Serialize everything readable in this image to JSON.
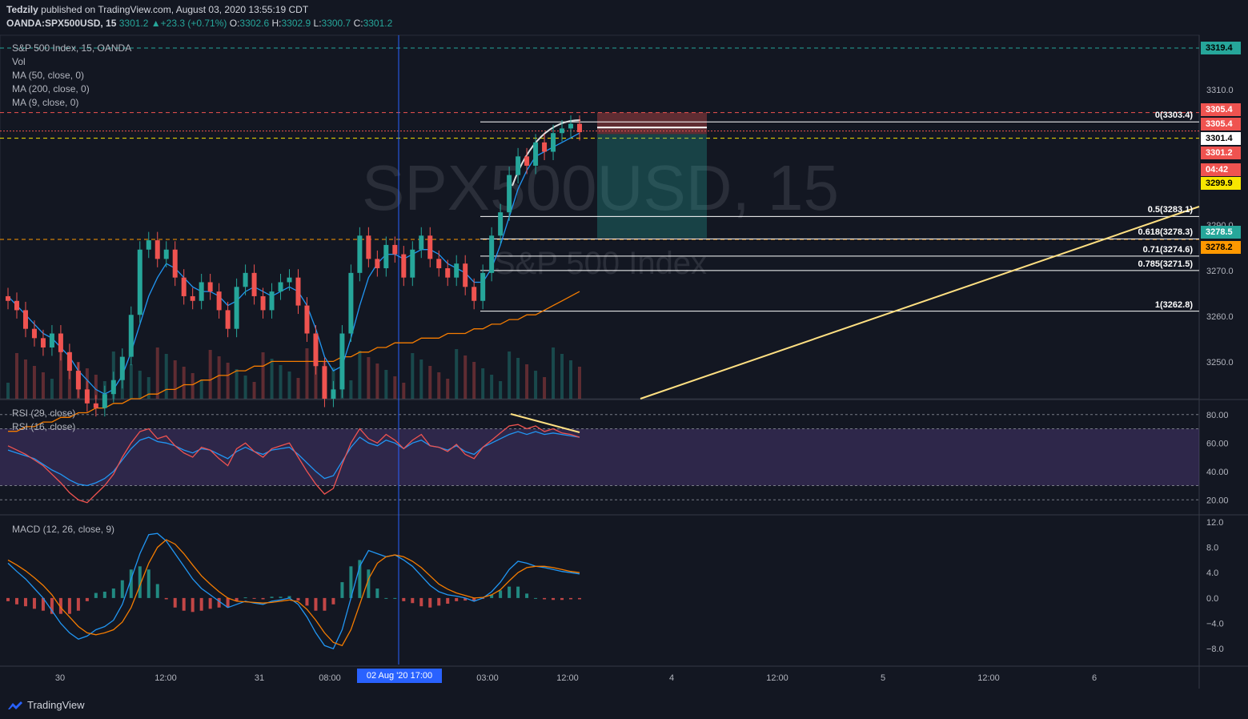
{
  "header": {
    "author": "Tedzily",
    "published": "published on TradingView.com, August 03, 2020 13:55:19 CDT",
    "symbol": "OANDA:SPX500USD, 15",
    "last": "3301.2",
    "change": "+23.3 (+0.71%)",
    "open_label": "O:",
    "open": "3302.6",
    "high_label": "H:",
    "high": "3302.9",
    "low_label": "L:",
    "low": "3300.7",
    "close_label": "C:",
    "close": "3301.2"
  },
  "legend": {
    "title": "S&P 500 Index, 15, OANDA",
    "vol": "Vol",
    "ma50": "MA (50, close, 0)",
    "ma200": "MA (200, close, 0)",
    "ma9": "MA (9, close, 0)",
    "rsi29": "RSI (29, close)",
    "rsi16": "RSI (16, close)",
    "macd": "MACD (12, 26, close, 9)"
  },
  "watermark": {
    "symbol": "SPX500USD, 15",
    "name": "S&P 500 Index"
  },
  "time_axis": {
    "labels": [
      "30",
      "12:00",
      "31",
      "08:00",
      "03:00",
      "12:00",
      "4",
      "12:00",
      "5",
      "12:00",
      "6"
    ],
    "crosshair_label": "02 Aug '20   17:00"
  },
  "price_axis": {
    "ticks": [
      "3310.0",
      "3290.0",
      "3270.0",
      "3260.0",
      "3250.0"
    ],
    "markers": [
      {
        "value": "3319.4",
        "bg": "#26a69a",
        "fg": "#000000"
      },
      {
        "value": "3305.4",
        "bg": "#ef5350",
        "fg": "#ffffff"
      },
      {
        "value": "3305.4",
        "bg": "#ef5350",
        "fg": "#ffffff"
      },
      {
        "value": "3301.4",
        "bg": "#ffffff",
        "fg": "#000000"
      },
      {
        "value": "3301.2",
        "bg": "#ef5350",
        "fg": "#ffffff"
      },
      {
        "value": "04:42",
        "bg": "#ef5350",
        "fg": "#ffffff"
      },
      {
        "value": "3299.9",
        "bg": "#f7e600",
        "fg": "#000000"
      },
      {
        "value": "3278.5",
        "bg": "#26a69a",
        "fg": "#ffffff"
      },
      {
        "value": "3278.2",
        "bg": "#ff9800",
        "fg": "#000000"
      }
    ]
  },
  "fib_levels": [
    {
      "label": "0(3303.4)",
      "price": 3303.4
    },
    {
      "label": "0.5(3283.1)",
      "price": 3283.1
    },
    {
      "label": "0.618(3278.3)",
      "price": 3278.3
    },
    {
      "label": "0.71(3274.6)",
      "price": 3274.6
    },
    {
      "label": "0.785(3271.5)",
      "price": 3271.5
    },
    {
      "label": "1(3262.8)",
      "price": 3262.8
    }
  ],
  "rsi_axis": {
    "ticks": [
      "80.00",
      "60.00",
      "40.00",
      "20.00"
    ]
  },
  "macd_axis": {
    "ticks": [
      "12.0",
      "8.0",
      "4.0",
      "0.0",
      "−4.0",
      "−8.0"
    ]
  },
  "colors": {
    "background": "#131722",
    "up": "#26a69a",
    "down": "#ef5350",
    "ma_blue": "#2196f3",
    "ma_orange": "#f57c00",
    "rsi_band": "#7e57c2",
    "trendline": "#ffe082"
  },
  "chart_data": {
    "type": "candlestick",
    "price_ylim": [
      3244,
      3322
    ],
    "candles_close": [
      3265,
      3263,
      3259,
      3257,
      3255,
      3258,
      3254,
      3250,
      3246,
      3243,
      3242,
      3245,
      3248,
      3253,
      3262,
      3276,
      3278,
      3274,
      3276,
      3270,
      3266,
      3265,
      3269,
      3267,
      3263,
      3259,
      3268,
      3271,
      3266,
      3263,
      3267,
      3269,
      3270,
      3264,
      3258,
      3251,
      3244,
      3246,
      3258,
      3271,
      3279,
      3274,
      3272,
      3277,
      3275,
      3270,
      3276,
      3279,
      3274,
      3272,
      3270,
      3273,
      3268,
      3265,
      3271,
      3279,
      3284,
      3292,
      3296,
      3294,
      3299,
      3297,
      3301,
      3302,
      3303,
      3301.2
    ],
    "ma9": [
      3266,
      3264,
      3262,
      3260,
      3258,
      3257,
      3255,
      3253,
      3250,
      3248,
      3246,
      3245,
      3246,
      3249,
      3254,
      3260,
      3266,
      3270,
      3273,
      3272,
      3270,
      3268,
      3267,
      3267,
      3266,
      3264,
      3265,
      3267,
      3268,
      3267,
      3266,
      3267,
      3268,
      3267,
      3264,
      3259,
      3253,
      3250,
      3251,
      3257,
      3264,
      3270,
      3273,
      3275,
      3275,
      3274,
      3275,
      3276,
      3276,
      3275,
      3273,
      3272,
      3271,
      3269,
      3269,
      3272,
      3277,
      3283,
      3289,
      3293,
      3296,
      3297,
      3298,
      3299,
      3300,
      3301
    ],
    "ma200": [
      3237,
      3237,
      3238,
      3238,
      3239,
      3239,
      3240,
      3240,
      3241,
      3241,
      3242,
      3242,
      3243,
      3243,
      3244,
      3244,
      3245,
      3245,
      3246,
      3246,
      3247,
      3247,
      3248,
      3248,
      3249,
      3249,
      3250,
      3250,
      3251,
      3251,
      3252,
      3252,
      3252,
      3252,
      3252,
      3252,
      3252,
      3252,
      3253,
      3253,
      3254,
      3254,
      3255,
      3255,
      3256,
      3256,
      3256,
      3257,
      3257,
      3257,
      3258,
      3258,
      3258,
      3259,
      3259,
      3260,
      3260,
      3261,
      3261,
      3262,
      3262,
      3263,
      3264,
      3265,
      3266,
      3267
    ],
    "rsi_ylim": [
      10,
      90
    ],
    "rsi29": [
      55,
      53,
      51,
      49,
      45,
      41,
      38,
      34,
      31,
      30,
      32,
      35,
      40,
      48,
      56,
      62,
      64,
      61,
      60,
      58,
      55,
      53,
      56,
      55,
      52,
      49,
      54,
      57,
      54,
      52,
      55,
      56,
      57,
      52,
      46,
      40,
      35,
      37,
      47,
      57,
      64,
      60,
      58,
      62,
      60,
      56,
      60,
      62,
      58,
      57,
      55,
      58,
      54,
      52,
      57,
      60,
      63,
      66,
      68,
      66,
      68,
      66,
      67,
      66,
      65,
      64
    ],
    "rsi16": [
      58,
      55,
      52,
      48,
      44,
      38,
      32,
      25,
      20,
      18,
      24,
      30,
      38,
      50,
      60,
      68,
      70,
      63,
      65,
      58,
      53,
      50,
      57,
      55,
      49,
      44,
      56,
      60,
      54,
      50,
      56,
      58,
      60,
      50,
      40,
      31,
      24,
      28,
      45,
      60,
      70,
      63,
      60,
      66,
      62,
      56,
      62,
      66,
      58,
      57,
      54,
      59,
      52,
      49,
      57,
      62,
      67,
      72,
      73,
      70,
      72,
      68,
      70,
      67,
      66,
      64
    ],
    "macd_ylim": [
      -10.5,
      13
    ],
    "macd_line": [
      5.5,
      4.2,
      3,
      1.5,
      0,
      -2,
      -4,
      -5.5,
      -6.5,
      -6,
      -5,
      -4.5,
      -3.5,
      -1,
      3,
      7,
      10,
      10.2,
      9,
      7,
      5,
      3,
      1.5,
      0.5,
      -0.5,
      -1.5,
      -1,
      -0.5,
      -0.8,
      -1,
      -0.5,
      -0.3,
      0,
      -1,
      -3,
      -5.5,
      -7.5,
      -8,
      -5,
      0,
      5,
      7.5,
      7,
      6.5,
      6.8,
      6,
      5,
      3.5,
      2,
      1,
      0.5,
      0.3,
      0,
      -0.5,
      0,
      1,
      2.5,
      4.5,
      5.8,
      5.5,
      5,
      4.8,
      4.5,
      4.2,
      4,
      3.8
    ],
    "macd_signal": [
      6,
      5.2,
      4.3,
      3.2,
      2,
      0.5,
      -1.5,
      -3,
      -4.5,
      -5.5,
      -5.8,
      -5.5,
      -5,
      -3.8,
      -1.5,
      2,
      5.5,
      8,
      9.2,
      8.5,
      7,
      5.2,
      3.5,
      2.2,
      1,
      0,
      -0.5,
      -0.6,
      -0.7,
      -0.8,
      -0.7,
      -0.5,
      -0.3,
      -0.6,
      -1.8,
      -3.5,
      -5.5,
      -7,
      -7.5,
      -5,
      -1,
      3,
      5.5,
      6.5,
      6.8,
      6.5,
      5.8,
      4.8,
      3.5,
      2.2,
      1.4,
      0.8,
      0.4,
      0,
      0.1,
      0.5,
      1.3,
      2.7,
      4,
      4.8,
      5,
      5,
      4.8,
      4.5,
      4.2,
      4
    ]
  }
}
